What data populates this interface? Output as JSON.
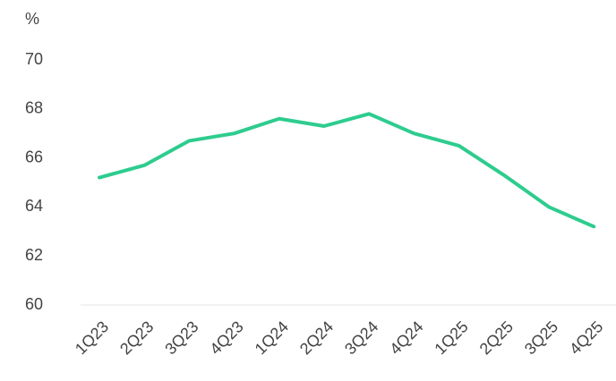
{
  "chart_data": {
    "type": "line",
    "y_label": "%",
    "categories": [
      "1Q23",
      "2Q23",
      "3Q23",
      "4Q23",
      "1Q24",
      "2Q24",
      "3Q24",
      "4Q24",
      "1Q25",
      "2Q25",
      "3Q25",
      "4Q25"
    ],
    "series": [
      {
        "color": "#2ecc8e",
        "values": [
          65.2,
          65.7,
          66.7,
          67.0,
          67.6,
          67.3,
          67.8,
          67.0,
          66.5,
          65.3,
          64.0,
          63.2
        ]
      }
    ],
    "ylim": [
      60,
      70
    ],
    "yticks": [
      60,
      62,
      64,
      66,
      68,
      70
    ]
  }
}
